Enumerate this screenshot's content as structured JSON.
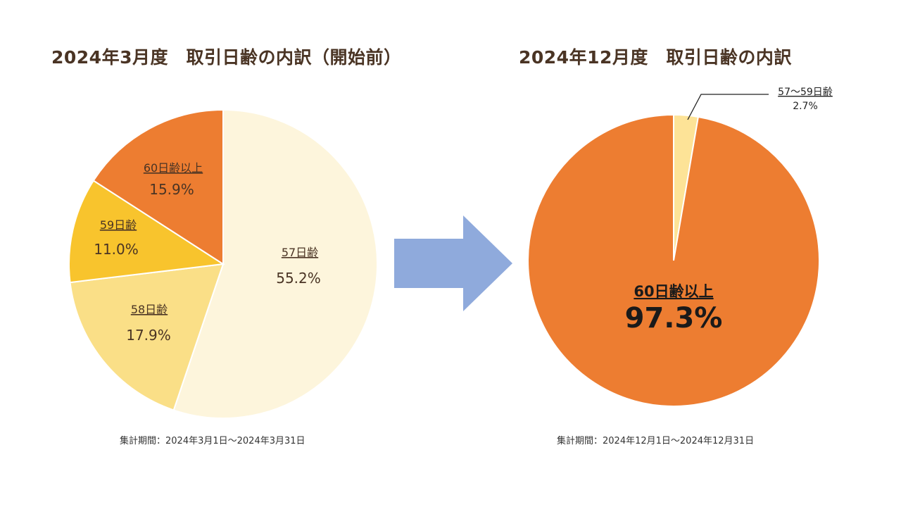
{
  "colors": {
    "title": "#4a3424",
    "label": "#4a3424",
    "arrow": "#8faadc"
  },
  "chart_data": [
    {
      "type": "pie",
      "title": "2024年3月度　取引日齢の内訳（開始前）",
      "period": "集計期間：2024年3月1日～2024年3月31日",
      "slices": [
        {
          "label": "57日齢",
          "value": 55.2,
          "display": "55.2%",
          "color": "#fdf5dc"
        },
        {
          "label": "58日齢",
          "value": 17.9,
          "display": "17.9%",
          "color": "#fadf87"
        },
        {
          "label": "59日齢",
          "value": 11.0,
          "display": "11.0%",
          "color": "#f8c42d"
        },
        {
          "label": "60日齢以上",
          "value": 15.9,
          "display": "15.9%",
          "color": "#ed7d31"
        }
      ]
    },
    {
      "type": "pie",
      "title": "2024年12月度　取引日齢の内訳",
      "period": "集計期間：2024年12月1日～2024年12月31日",
      "slices": [
        {
          "label": "57～59日齢",
          "value": 2.7,
          "display": "2.7%",
          "color": "#fde397"
        },
        {
          "label": "60日齢以上",
          "value": 97.3,
          "display": "97.3%",
          "color": "#ed7d31"
        }
      ]
    }
  ]
}
